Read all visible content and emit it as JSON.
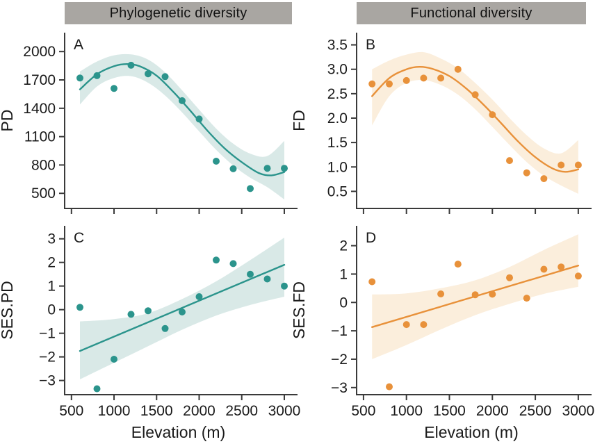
{
  "figure": {
    "column_headers": [
      {
        "label": "Phylogenetic diversity"
      },
      {
        "label": "Functional diversity"
      }
    ],
    "xlabel": "Elevation (m)"
  },
  "colors": {
    "teal": "#2b948c",
    "teal_band": "#d9e9e7",
    "orange": "#e8913a",
    "orange_band": "#fbeedc",
    "header_bg": "#a9a6a2",
    "header_text": "#111111",
    "axis": "#3a3a3a",
    "text": "#1a1a1a"
  },
  "chart_data": [
    {
      "panel": "A",
      "type": "scatter",
      "ylabel": "PD",
      "xlabel": "",
      "color_key": "teal",
      "x": [
        600,
        800,
        1000,
        1200,
        1400,
        1600,
        1800,
        2000,
        2200,
        2400,
        2600,
        2800,
        3000
      ],
      "y": [
        1720,
        1745,
        1610,
        1855,
        1765,
        1735,
        1480,
        1286,
        840,
        760,
        550,
        765,
        765
      ],
      "trend": {
        "shape": "smooth",
        "x": [
          600,
          800,
          1000,
          1150,
          1300,
          1500,
          1700,
          1900,
          2100,
          2300,
          2500,
          2700,
          2850,
          3000
        ],
        "y": [
          1600,
          1760,
          1845,
          1868,
          1845,
          1745,
          1570,
          1370,
          1160,
          975,
          830,
          715,
          690,
          725
        ]
      },
      "band": {
        "x": [
          600,
          800,
          1000,
          1200,
          1400,
          1600,
          1800,
          2000,
          2200,
          2400,
          2600,
          2800,
          3000
        ],
        "lower": [
          1440,
          1630,
          1720,
          1740,
          1670,
          1535,
          1355,
          1155,
          960,
          795,
          665,
          565,
          435
        ],
        "upper": [
          1790,
          1895,
          1960,
          1970,
          1915,
          1780,
          1590,
          1385,
          1185,
          1025,
          920,
          895,
          1055
        ]
      },
      "xlim": [
        420,
        3090
      ],
      "ylim": [
        340,
        2200
      ],
      "xticks": [
        500,
        1000,
        1500,
        2000,
        2500,
        3000
      ],
      "xtick_labels": [
        "500",
        "1000",
        "1500",
        "2000",
        "2500",
        "3000"
      ],
      "show_xtick_labels": false,
      "yticks": [
        500,
        800,
        1100,
        1400,
        1700,
        2000
      ],
      "ytick_labels": [
        "500",
        "800",
        "1100",
        "1400",
        "1700",
        "2000"
      ]
    },
    {
      "panel": "B",
      "type": "scatter",
      "ylabel": "FD",
      "xlabel": "",
      "color_key": "orange",
      "x": [
        600,
        800,
        1000,
        1200,
        1400,
        1600,
        1800,
        2000,
        2200,
        2400,
        2600,
        2800,
        3000
      ],
      "y": [
        2.7,
        2.7,
        2.77,
        2.82,
        2.82,
        3.0,
        2.48,
        2.07,
        1.13,
        0.88,
        0.76,
        1.04,
        1.04
      ],
      "trend": {
        "shape": "smooth",
        "x": [
          600,
          800,
          1000,
          1150,
          1300,
          1500,
          1700,
          1900,
          2100,
          2300,
          2500,
          2700,
          2850,
          3000
        ],
        "y": [
          2.45,
          2.82,
          3.0,
          3.05,
          3.01,
          2.86,
          2.6,
          2.27,
          1.9,
          1.52,
          1.2,
          0.97,
          0.9,
          0.95
        ]
      },
      "band": {
        "x": [
          600,
          800,
          1000,
          1200,
          1400,
          1600,
          1800,
          2000,
          2200,
          2400,
          2600,
          2800,
          3000
        ],
        "lower": [
          1.85,
          2.45,
          2.72,
          2.78,
          2.68,
          2.48,
          2.18,
          1.82,
          1.45,
          1.1,
          0.82,
          0.62,
          0.45
        ],
        "upper": [
          3.0,
          3.18,
          3.3,
          3.35,
          3.22,
          3.02,
          2.72,
          2.38,
          2.0,
          1.65,
          1.38,
          1.28,
          1.55
        ]
      },
      "xlim": [
        420,
        3090
      ],
      "ylim": [
        0.15,
        3.75
      ],
      "xticks": [
        500,
        1000,
        1500,
        2000,
        2500,
        3000
      ],
      "xtick_labels": [
        "500",
        "1000",
        "1500",
        "2000",
        "2500",
        "3000"
      ],
      "show_xtick_labels": false,
      "yticks": [
        0.5,
        1.0,
        1.5,
        2.0,
        2.5,
        3.0,
        3.5
      ],
      "ytick_labels": [
        "0.5",
        "1.0",
        "1.5",
        "2.0",
        "2.5",
        "3.0",
        "3.5"
      ]
    },
    {
      "panel": "C",
      "type": "scatter",
      "ylabel": "SES.PD",
      "xlabel": "Elevation (m)",
      "color_key": "teal",
      "x": [
        600,
        800,
        1000,
        1200,
        1400,
        1600,
        1800,
        2000,
        2200,
        2400,
        2600,
        2800,
        3000
      ],
      "y": [
        0.1,
        -3.35,
        -2.1,
        -0.2,
        -0.05,
        -0.8,
        -0.1,
        0.55,
        2.1,
        1.95,
        1.5,
        1.3,
        1.0
      ],
      "trend": {
        "shape": "linear",
        "x": [
          600,
          3000
        ],
        "y": [
          -1.75,
          1.9
        ]
      },
      "band": {
        "x": [
          600,
          1000,
          1400,
          1800,
          2200,
          2600,
          3000
        ],
        "lower": [
          -2.95,
          -2.25,
          -1.55,
          -0.85,
          -0.25,
          0.2,
          0.55
        ],
        "upper": [
          -0.5,
          -0.4,
          -0.15,
          0.45,
          1.2,
          2.1,
          3.05
        ]
      },
      "xlim": [
        420,
        3090
      ],
      "ylim": [
        -3.6,
        3.55
      ],
      "xticks": [
        500,
        1000,
        1500,
        2000,
        2500,
        3000
      ],
      "xtick_labels": [
        "500",
        "1000",
        "1500",
        "2000",
        "2500",
        "3000"
      ],
      "show_xtick_labels": true,
      "yticks": [
        -3,
        -2,
        -1,
        0,
        1,
        2,
        3
      ],
      "ytick_labels": [
        "−3",
        "−2",
        "−1",
        "0",
        "1",
        "2",
        "3"
      ]
    },
    {
      "panel": "D",
      "type": "scatter",
      "ylabel": "SES.FD",
      "xlabel": "Elevation (m)",
      "color_key": "orange",
      "x": [
        600,
        800,
        1000,
        1200,
        1400,
        1600,
        1800,
        2000,
        2200,
        2400,
        2600,
        2800,
        3000
      ],
      "y": [
        0.73,
        -2.97,
        -0.78,
        -0.78,
        0.3,
        1.35,
        0.27,
        0.29,
        0.87,
        0.15,
        1.17,
        1.25,
        0.93
      ],
      "trend": {
        "shape": "linear",
        "x": [
          600,
          3000
        ],
        "y": [
          -0.87,
          1.3
        ]
      },
      "band": {
        "x": [
          600,
          1000,
          1400,
          1800,
          2200,
          2600,
          3000
        ],
        "lower": [
          -2.0,
          -1.5,
          -0.95,
          -0.45,
          -0.05,
          0.3,
          0.55
        ],
        "upper": [
          0.28,
          0.32,
          0.5,
          0.78,
          1.25,
          1.85,
          2.4
        ]
      },
      "xlim": [
        420,
        3090
      ],
      "ylim": [
        -3.25,
        2.7
      ],
      "xticks": [
        500,
        1000,
        1500,
        2000,
        2500,
        3000
      ],
      "xtick_labels": [
        "500",
        "1000",
        "1500",
        "2000",
        "2500",
        "3000"
      ],
      "show_xtick_labels": true,
      "yticks": [
        -3,
        -2,
        -1,
        0,
        1,
        2
      ],
      "ytick_labels": [
        "−3",
        "−2",
        "−1",
        "0",
        "1",
        "2"
      ]
    }
  ]
}
